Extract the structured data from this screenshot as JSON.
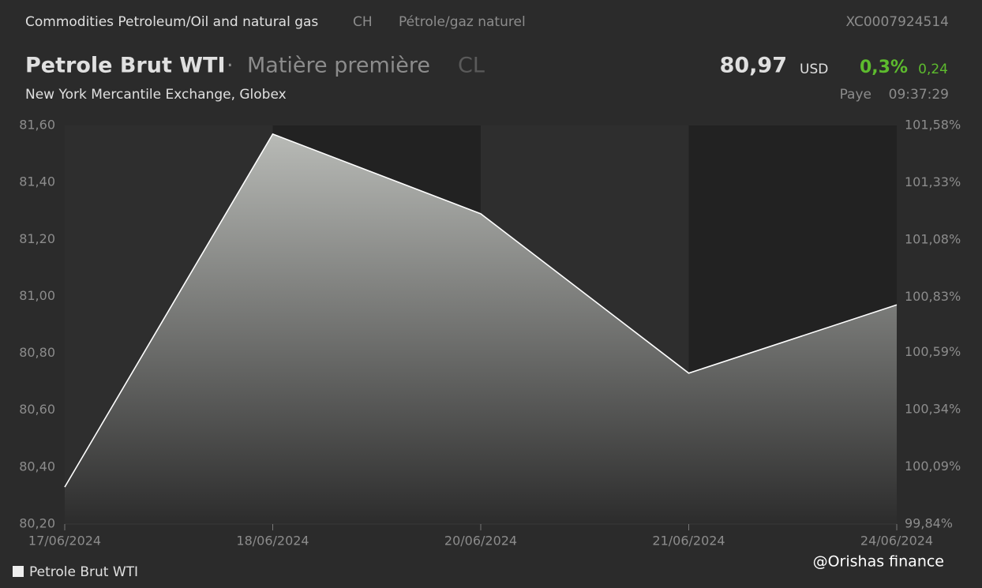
{
  "header": {
    "category": "Commodities Petroleum/Oil and natural gas",
    "country": "CH",
    "category_fr": "Pétrole/gaz naturel",
    "isin": "XC0007924514",
    "name": "Petrole Brut WTI",
    "separator": "·",
    "asset_type": "Matière première",
    "symbol": "CL",
    "price": "80,97",
    "currency": "USD",
    "change_pct": "0,3%",
    "change_abs": "0,24",
    "exchange": "New York Mercantile Exchange, Globex",
    "status": "Paye",
    "time": "09:37:29"
  },
  "watermark": "@Orishas finance",
  "chart_data": {
    "type": "area",
    "categories": [
      "17/06/2024",
      "18/06/2024",
      "20/06/2024",
      "21/06/2024",
      "24/06/2024"
    ],
    "series": [
      {
        "name": "Petrole Brut WTI",
        "color": "#ffffff",
        "values": [
          80.33,
          81.57,
          81.29,
          80.73,
          80.97
        ]
      }
    ],
    "ylim": [
      80.2,
      81.6
    ],
    "yticks": [
      {
        "value": 80.2,
        "label": "80,20"
      },
      {
        "value": 80.4,
        "label": "80,40"
      },
      {
        "value": 80.6,
        "label": "80,60"
      },
      {
        "value": 80.8,
        "label": "80,80"
      },
      {
        "value": 81.0,
        "label": "81,00"
      },
      {
        "value": 81.2,
        "label": "81,20"
      },
      {
        "value": 81.4,
        "label": "81,40"
      },
      {
        "value": 81.6,
        "label": "81,60"
      }
    ],
    "y2lim": [
      99.84,
      101.58
    ],
    "y2ticks": [
      {
        "value": 99.84,
        "label": "99,84%"
      },
      {
        "value": 100.09,
        "label": "100,09%"
      },
      {
        "value": 100.34,
        "label": "100,34%"
      },
      {
        "value": 100.59,
        "label": "100,59%"
      },
      {
        "value": 100.83,
        "label": "100,83%"
      },
      {
        "value": 101.08,
        "label": "101,08%"
      },
      {
        "value": 101.33,
        "label": "101,33%"
      },
      {
        "value": 101.58,
        "label": "101,58%"
      }
    ],
    "grid": false
  }
}
